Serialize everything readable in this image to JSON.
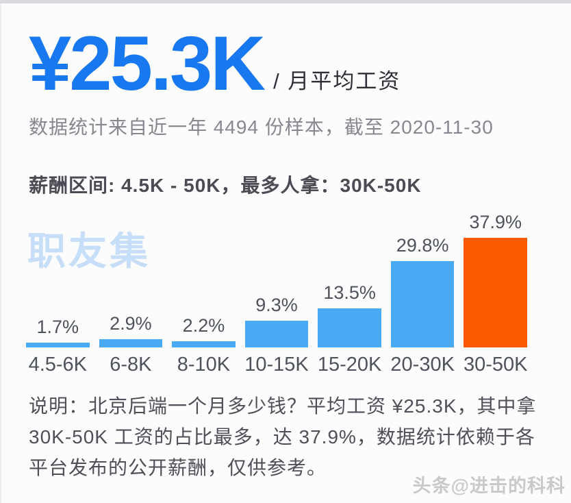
{
  "page": {
    "average_salary": "¥25.3K",
    "average_salary_unit": "/ 月平均工资",
    "sample_info": "数据统计来自近一年 4494 份样本，截至 2020-11-30",
    "range_summary": "薪酬区间: 4.5K - 50K，最多人拿：30K-50K",
    "site_watermark": "职友集",
    "note": "说明：北京后端一个月多少钱？平均工资 ¥25.3K，其中拿 30K-50K 工资的占比最多，达 37.9%，数据统计依赖于各平台发布的公开薪酬，仅供参考。",
    "credit_watermark": "头条@进击的科科"
  },
  "colors": {
    "accent_blue": "#1778F0",
    "bar_blue": "#49ABF5",
    "bar_highlight_orange": "#FB5A00",
    "watermark_blue": "#C6DEF8"
  },
  "chart_data": {
    "type": "bar",
    "categories": [
      "4.5-6K",
      "6-8K",
      "8-10K",
      "10-15K",
      "15-20K",
      "20-30K",
      "30-50K"
    ],
    "values": [
      1.7,
      2.9,
      2.2,
      9.3,
      13.5,
      29.8,
      37.9
    ],
    "value_labels": [
      "1.7%",
      "2.9%",
      "2.2%",
      "9.3%",
      "13.5%",
      "29.8%",
      "37.9%"
    ],
    "unit": "%",
    "ylim": [
      0,
      40
    ],
    "grid": false,
    "legend": false,
    "highlight_index": 6,
    "xlabel": "",
    "ylabel": ""
  }
}
